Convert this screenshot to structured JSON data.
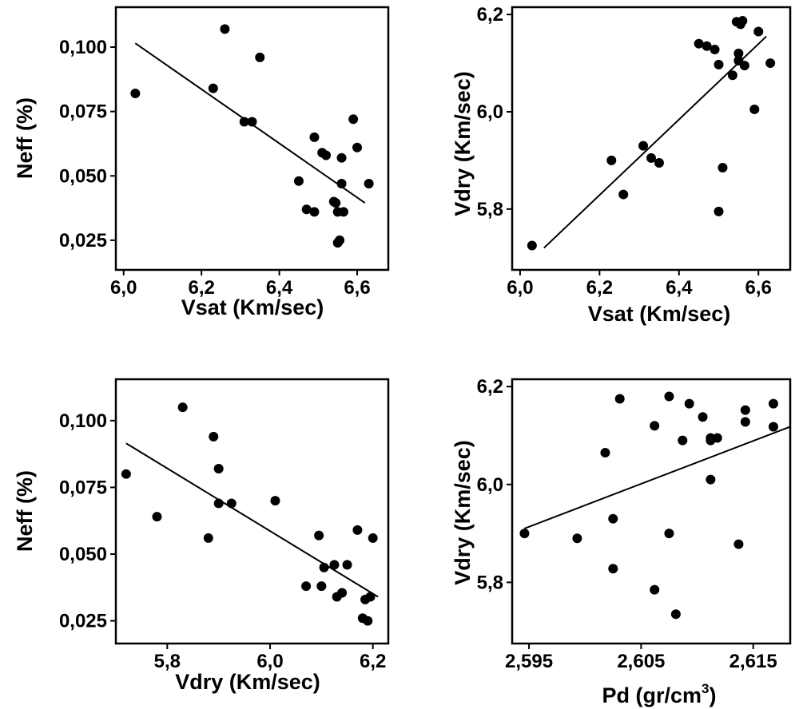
{
  "chart_data": [
    {
      "type": "scatter",
      "xlabel": "Vsat (Km/sec)",
      "ylabel": "Neff (%)",
      "xlim": [
        5.98,
        6.68
      ],
      "ylim": [
        0.0135,
        0.1155
      ],
      "xticks": [
        6.0,
        6.2,
        6.4,
        6.6
      ],
      "xtick_labels": [
        "6,0",
        "6,2",
        "6,4",
        "6,6"
      ],
      "yticks": [
        0.025,
        0.05,
        0.075,
        0.1
      ],
      "ytick_labels": [
        "0,025",
        "0,050",
        "0,075",
        "0,100"
      ],
      "points": {
        "x": [
          6.03,
          6.23,
          6.26,
          6.31,
          6.33,
          6.35,
          6.45,
          6.47,
          6.49,
          6.49,
          6.51,
          6.52,
          6.54,
          6.55,
          6.55,
          6.555,
          6.56,
          6.56,
          6.565,
          6.59,
          6.6,
          6.63,
          6.545
        ],
        "y": [
          0.082,
          0.084,
          0.107,
          0.071,
          0.071,
          0.096,
          0.048,
          0.037,
          0.036,
          0.065,
          0.059,
          0.058,
          0.04,
          0.036,
          0.024,
          0.025,
          0.047,
          0.057,
          0.036,
          0.072,
          0.061,
          0.047,
          0.0395
        ]
      },
      "fit_line": {
        "x": [
          6.03,
          6.62
        ],
        "y": [
          0.1015,
          0.0395
        ]
      }
    },
    {
      "type": "scatter",
      "xlabel": "Vsat (Km/sec)",
      "ylabel": "Vdry (Km/sec)",
      "xlim": [
        5.98,
        6.68
      ],
      "ylim": [
        5.675,
        6.215
      ],
      "xticks": [
        6.0,
        6.2,
        6.4,
        6.6
      ],
      "xtick_labels": [
        "6,0",
        "6,2",
        "6,4",
        "6,6"
      ],
      "yticks": [
        5.8,
        6.0,
        6.2
      ],
      "ytick_labels": [
        "5,8",
        "6,0",
        "6,2"
      ],
      "points": {
        "x": [
          6.03,
          6.23,
          6.26,
          6.31,
          6.33,
          6.35,
          6.45,
          6.47,
          6.49,
          6.5,
          6.5,
          6.51,
          6.535,
          6.545,
          6.55,
          6.55,
          6.555,
          6.56,
          6.565,
          6.59,
          6.6,
          6.63
        ],
        "y": [
          5.725,
          5.9,
          5.83,
          5.93,
          5.905,
          5.895,
          6.14,
          6.135,
          6.128,
          5.795,
          6.097,
          5.885,
          6.075,
          6.185,
          6.12,
          6.105,
          6.18,
          6.187,
          6.095,
          6.005,
          6.165,
          6.1
        ]
      },
      "fit_line": {
        "x": [
          6.06,
          6.62
        ],
        "y": [
          5.72,
          6.155
        ]
      }
    },
    {
      "type": "scatter",
      "xlabel": "Vdry (Km/sec)",
      "ylabel": "Neff (%)",
      "xlim": [
        5.7,
        6.23
      ],
      "ylim": [
        0.0165,
        0.1155
      ],
      "xticks": [
        5.8,
        6.0,
        6.2
      ],
      "xtick_labels": [
        "5,8",
        "6,0",
        "6,2"
      ],
      "yticks": [
        0.025,
        0.05,
        0.075,
        0.1
      ],
      "ytick_labels": [
        "0,025",
        "0,050",
        "0,075",
        "0,100"
      ],
      "points": {
        "x": [
          5.72,
          5.78,
          5.83,
          5.88,
          5.89,
          5.9,
          5.9,
          5.925,
          6.01,
          6.07,
          6.095,
          6.1,
          6.105,
          6.125,
          6.13,
          6.14,
          6.15,
          6.17,
          6.18,
          6.185,
          6.19,
          6.195,
          6.2
        ],
        "y": [
          0.08,
          0.064,
          0.105,
          0.056,
          0.094,
          0.082,
          0.069,
          0.069,
          0.07,
          0.038,
          0.057,
          0.038,
          0.045,
          0.046,
          0.034,
          0.0355,
          0.046,
          0.059,
          0.026,
          0.033,
          0.025,
          0.034,
          0.056
        ]
      },
      "fit_line": {
        "x": [
          5.72,
          6.21
        ],
        "y": [
          0.0915,
          0.034
        ]
      }
    },
    {
      "type": "scatter",
      "xlabel": "Pd (gr/cm",
      "xlabel_sup": "3",
      "xlabel_end": ")",
      "ylabel": "Vdry (Km/sec)",
      "xlim": [
        2.5935,
        2.6183
      ],
      "ylim": [
        5.675,
        6.215
      ],
      "xticks": [
        2.595,
        2.605,
        2.615
      ],
      "xtick_labels": [
        "2,595",
        "2,605",
        "2,615"
      ],
      "yticks": [
        5.8,
        6.0,
        6.2
      ],
      "ytick_labels": [
        "5,8",
        "6,0",
        "6,2"
      ],
      "points": {
        "x": [
          2.5946,
          2.5993,
          2.6018,
          2.6025,
          2.6025,
          2.6031,
          2.6062,
          2.6062,
          2.6075,
          2.6075,
          2.6081,
          2.6087,
          2.6093,
          2.6105,
          2.6112,
          2.6112,
          2.6112,
          2.6118,
          2.6137,
          2.6143,
          2.6143,
          2.6168,
          2.6168
        ],
        "y": [
          5.9,
          5.89,
          6.065,
          5.93,
          5.828,
          6.175,
          5.785,
          6.12,
          5.9,
          6.18,
          5.735,
          6.09,
          6.165,
          6.138,
          6.09,
          6.01,
          6.095,
          6.095,
          5.878,
          6.128,
          6.152,
          6.118,
          6.165
        ]
      },
      "fit_line": {
        "x": [
          2.5946,
          2.6183
        ],
        "y": [
          5.91,
          6.118
        ]
      }
    }
  ]
}
